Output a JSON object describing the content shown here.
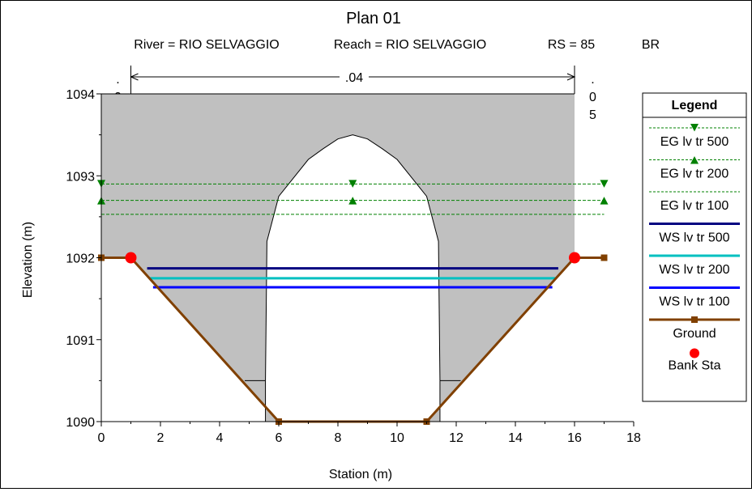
{
  "chart_data": {
    "type": "line",
    "title": "Plan 01",
    "subtitle": {
      "river": "River = RIO SELVAGGIO",
      "reach": "Reach = RIO SELVAGGIO",
      "rs": "RS = 85",
      "type": "BR"
    },
    "xlabel": "Station (m)",
    "ylabel": "Elevation (m)",
    "xlim": [
      0,
      18
    ],
    "ylim": [
      1090,
      1094
    ],
    "xticks": [
      "0",
      "2",
      "4",
      "6",
      "8",
      "10",
      "12",
      "14",
      "16",
      "18"
    ],
    "yticks": [
      "1090",
      "1091",
      "1092",
      "1093",
      "1094"
    ],
    "manning": {
      "left": [
        ".",
        "0",
        "5"
      ],
      "center": ".04",
      "right": [
        ".",
        "0",
        "5"
      ],
      "center_range": [
        1.0,
        16.0
      ]
    },
    "deck": {
      "low_chord": 1094,
      "station_range": [
        0,
        16
      ],
      "fill": "#c0c0c0",
      "arch_opening": [
        [
          5.55,
          1090.5
        ],
        [
          5.6,
          1092.2
        ],
        [
          6.0,
          1092.75
        ],
        [
          7.0,
          1093.2
        ],
        [
          7.5,
          1093.33
        ],
        [
          8.0,
          1093.45
        ],
        [
          8.5,
          1093.5
        ],
        [
          9.0,
          1093.45
        ],
        [
          9.5,
          1093.33
        ],
        [
          10.0,
          1093.2
        ],
        [
          11.0,
          1092.75
        ],
        [
          11.4,
          1092.2
        ],
        [
          11.45,
          1090.5
        ]
      ]
    },
    "piers": [
      {
        "top_y": 1090.5,
        "x": [
          4.85,
          5.55
        ]
      },
      {
        "top_y": 1090.5,
        "x": [
          11.45,
          12.15
        ]
      }
    ],
    "series": [
      {
        "name": "EG lv tr 500",
        "kind": "eg",
        "color": "#008000",
        "marker": "down-triangle",
        "value": 1092.9,
        "x_range": [
          0,
          17
        ],
        "marker_x": [
          0,
          8.5,
          17
        ]
      },
      {
        "name": "EG lv tr 200",
        "kind": "eg",
        "color": "#008000",
        "marker": "up-triangle",
        "value": 1092.7,
        "x_range": [
          0,
          17
        ],
        "marker_x": [
          0,
          8.5,
          17
        ]
      },
      {
        "name": "EG lv tr 100",
        "kind": "eg",
        "color": "#008000",
        "marker": "none",
        "value": 1092.53,
        "x_range": [
          0,
          17
        ],
        "marker_x": []
      },
      {
        "name": "WS lv tr 500",
        "kind": "ws",
        "color": "#000080",
        "value": 1091.87,
        "x_range": [
          1.55,
          15.45
        ]
      },
      {
        "name": "WS lv tr 200",
        "kind": "ws",
        "color": "#00c0c0",
        "value": 1091.75,
        "x_range": [
          1.65,
          15.35
        ]
      },
      {
        "name": "WS lv tr 100",
        "kind": "ws",
        "color": "#0000ff",
        "value": 1091.64,
        "x_range": [
          1.75,
          15.25
        ]
      },
      {
        "name": "Ground",
        "kind": "ground",
        "color": "#804000",
        "points": [
          [
            0,
            1092
          ],
          [
            1,
            1092
          ],
          [
            6,
            1090
          ],
          [
            11,
            1090
          ],
          [
            16,
            1092
          ],
          [
            17,
            1092
          ]
        ]
      },
      {
        "name": "Bank Sta",
        "kind": "bank",
        "color": "#ff0000",
        "points": [
          [
            1,
            1092
          ],
          [
            16,
            1092
          ]
        ]
      }
    ],
    "legend": {
      "title": "Legend",
      "placement": "right"
    }
  }
}
